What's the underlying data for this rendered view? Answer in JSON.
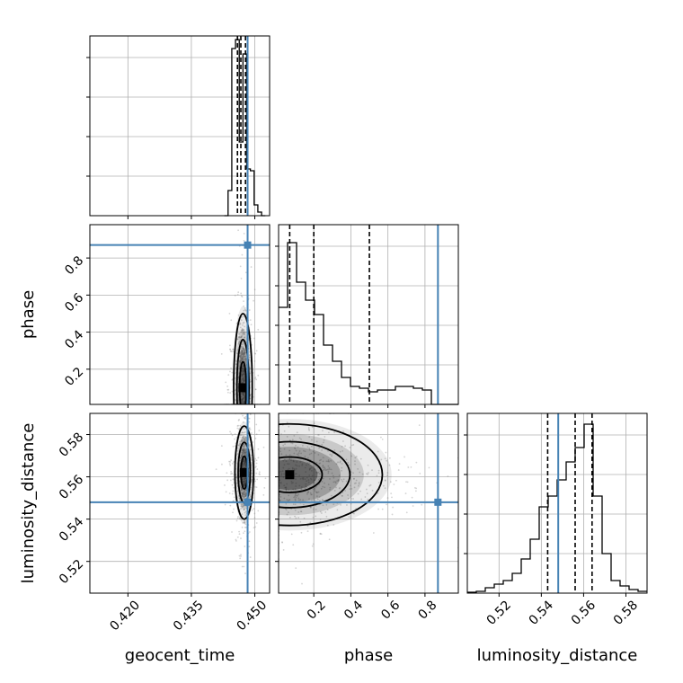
{
  "colors": {
    "truth": "#4682b4",
    "grid": "#b0b0b0",
    "hist": "#000000",
    "sample_points": "#888888"
  },
  "chart_data": {
    "type": "corner",
    "parameters": [
      "geocent_time",
      "phase",
      "luminosity_distance"
    ],
    "grid": true,
    "truths": {
      "geocent_time": 0.4483,
      "phase": 0.87,
      "luminosity_distance": 0.548
    },
    "axes": {
      "geocent_time": {
        "range": [
          0.411,
          0.4535
        ],
        "ticks": [
          0.42,
          0.435,
          0.45
        ],
        "tick_labels": [
          "0.420",
          "0.435",
          "0.450"
        ]
      },
      "phase": {
        "range": [
          0.01,
          0.98
        ],
        "ticks": [
          0.2,
          0.4,
          0.6,
          0.8
        ],
        "tick_labels": [
          "0.2",
          "0.4",
          "0.6",
          "0.8"
        ]
      },
      "luminosity_distance": {
        "range": [
          0.505,
          0.59
        ],
        "ticks": [
          0.52,
          0.54,
          0.56,
          0.58
        ],
        "tick_labels": [
          "0.52",
          "0.54",
          "0.56",
          "0.58"
        ]
      }
    },
    "histograms": {
      "geocent_time": {
        "edges": [
          0.4428,
          0.44368,
          0.44456,
          0.44544,
          0.44632,
          0.4472,
          0.44808,
          0.44896,
          0.44984,
          0.45072,
          0.4516,
          0.45248
        ],
        "counts": [
          0,
          0.14,
          0.93,
          0.98,
          0.41,
          0.9,
          0.26,
          0.25,
          0.06,
          0.02,
          0,
          0
        ],
        "quantiles": [
          0.4459,
          0.4467,
          0.4478
        ]
      },
      "phase": {
        "edges": [
          0.01,
          0.0585,
          0.107,
          0.1555,
          0.204,
          0.2525,
          0.301,
          0.3495,
          0.398,
          0.4465,
          0.495,
          0.5435,
          0.592,
          0.6405,
          0.689,
          0.7375,
          0.786,
          0.8345,
          0.883,
          0.9315,
          0.98
        ],
        "counts": [
          0.54,
          0.9,
          0.68,
          0.58,
          0.5,
          0.33,
          0.24,
          0.15,
          0.1,
          0.09,
          0.07,
          0.08,
          0.08,
          0.1,
          0.1,
          0.09,
          0.08,
          0,
          0,
          0
        ],
        "quantiles": [
          0.07,
          0.2,
          0.5
        ]
      },
      "luminosity_distance": {
        "edges": [
          0.505,
          0.50925,
          0.5135,
          0.51775,
          0.522,
          0.52625,
          0.5305,
          0.53475,
          0.539,
          0.54325,
          0.5475,
          0.55175,
          0.556,
          0.56025,
          0.5645,
          0.56875,
          0.573,
          0.57725,
          0.5815,
          0.58575,
          0.59
        ],
        "counts": [
          0.005,
          0.01,
          0.03,
          0.05,
          0.07,
          0.11,
          0.19,
          0.3,
          0.48,
          0.54,
          0.63,
          0.73,
          0.81,
          0.94,
          0.54,
          0.22,
          0.07,
          0.04,
          0.02,
          0.01
        ],
        "quantiles": [
          0.543,
          0.556,
          0.564
        ]
      }
    },
    "joint": [
      {
        "x": "geocent_time",
        "y": "phase",
        "mode": {
          "x": 0.4472,
          "y": 0.1
        },
        "sigma_x": 0.0011,
        "sigma_y": 0.2
      },
      {
        "x": "geocent_time",
        "y": "luminosity_distance",
        "mode": {
          "x": 0.4475,
          "y": 0.562
        },
        "sigma_x": 0.0011,
        "sigma_y": 0.011
      },
      {
        "x": "phase",
        "y": "luminosity_distance",
        "mode": {
          "x": 0.07,
          "y": 0.561
        },
        "sigma_x": 0.25,
        "sigma_y": 0.012
      }
    ]
  }
}
